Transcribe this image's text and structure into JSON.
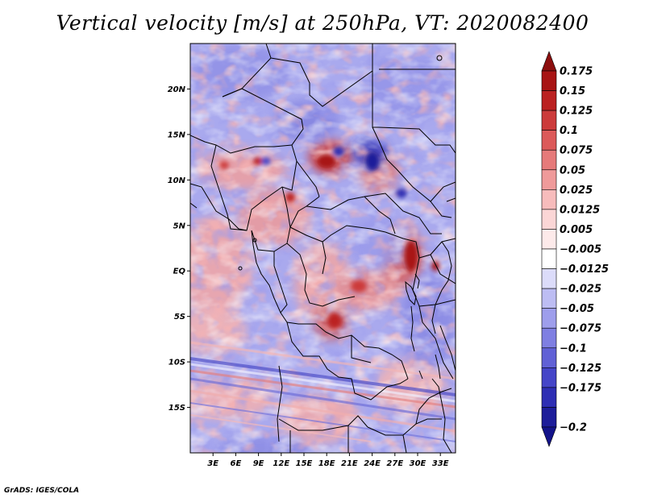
{
  "title": "Vertical velocity [m/s] at 250hPa, VT: 2020082400",
  "map": {
    "variable": "Vertical velocity",
    "units": "m/s",
    "level": "250hPa",
    "valid_time": "2020082400",
    "lat_range": [
      -20,
      25
    ],
    "lon_range": [
      0,
      35
    ],
    "y_ticks": [
      {
        "lat": 20,
        "label": "20N"
      },
      {
        "lat": 15,
        "label": "15N"
      },
      {
        "lat": 10,
        "label": "10N"
      },
      {
        "lat": 5,
        "label": "5N"
      },
      {
        "lat": 0,
        "label": "EQ"
      },
      {
        "lat": -5,
        "label": "5S"
      },
      {
        "lat": -10,
        "label": "10S"
      },
      {
        "lat": -15,
        "label": "15S"
      }
    ],
    "x_ticks": [
      {
        "lon": 3,
        "label": "3E"
      },
      {
        "lon": 6,
        "label": "6E"
      },
      {
        "lon": 9,
        "label": "9E"
      },
      {
        "lon": 12,
        "label": "12E"
      },
      {
        "lon": 15,
        "label": "15E"
      },
      {
        "lon": 18,
        "label": "18E"
      },
      {
        "lon": 21,
        "label": "21E"
      },
      {
        "lon": 24,
        "label": "24E"
      },
      {
        "lon": 27,
        "label": "27E"
      },
      {
        "lon": 30,
        "label": "30E"
      },
      {
        "lon": 33,
        "label": "33E"
      }
    ]
  },
  "colorbar": {
    "levels": [
      {
        "label": "0.175",
        "color": "#a81414"
      },
      {
        "label": "0.15",
        "color": "#bb2121"
      },
      {
        "label": "0.125",
        "color": "#cc3b3b"
      },
      {
        "label": "0.1",
        "color": "#dc5a5a"
      },
      {
        "label": "0.075",
        "color": "#e67a7a"
      },
      {
        "label": "0.05",
        "color": "#ef9a9a"
      },
      {
        "label": "0.025",
        "color": "#f7bcbc"
      },
      {
        "label": "0.0125",
        "color": "#fbd6d6"
      },
      {
        "label": "0.005",
        "color": "#fdeaea"
      },
      {
        "label": "−0.005",
        "color": "#ffffff"
      },
      {
        "label": "−0.0125",
        "color": "#dcdcfa"
      },
      {
        "label": "−0.025",
        "color": "#bdbdf3"
      },
      {
        "label": "−0.05",
        "color": "#9e9eec"
      },
      {
        "label": "−0.075",
        "color": "#7f7fe2"
      },
      {
        "label": "−0.1",
        "color": "#6161d6"
      },
      {
        "label": "−0.125",
        "color": "#4545c8"
      },
      {
        "label": "−0.175",
        "color": "#2e2eb4"
      },
      {
        "label": "−0.2",
        "color": "#1d1d9a"
      }
    ],
    "top_arrow_color": "#8c0e0e",
    "bottom_arrow_color": "#13138a"
  },
  "credit": "GrADS: IGES/COLA"
}
